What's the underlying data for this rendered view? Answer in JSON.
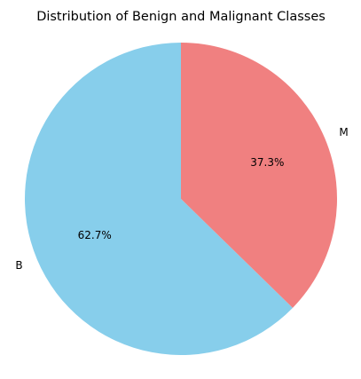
{
  "chart_data": {
    "type": "pie",
    "title": "Distribution of Benign and Malignant Classes",
    "categories": [
      "B",
      "M"
    ],
    "values": [
      62.7,
      37.3
    ],
    "percent_labels": [
      "62.7%",
      "37.3%"
    ],
    "colors": [
      "#87ceeb",
      "#f08080"
    ],
    "start_angle_deg": 90,
    "direction": "counterclockwise",
    "legend": "none"
  }
}
